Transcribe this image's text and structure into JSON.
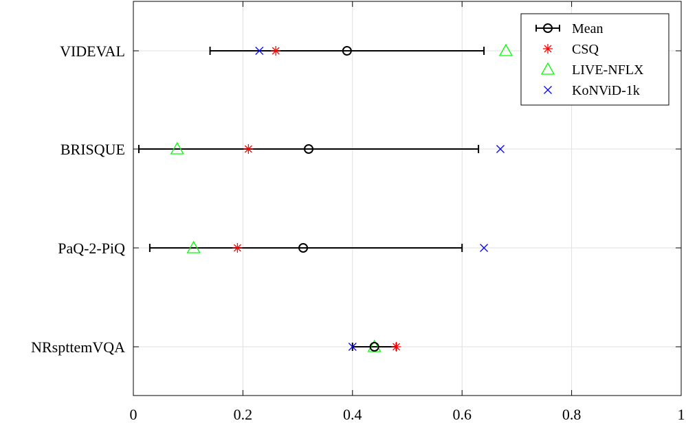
{
  "chart_data": {
    "type": "scatter",
    "orientation": "horizontal-errorbar",
    "categories": [
      "VIDEVAL",
      "BRISQUE",
      "PaQ-2-PiQ",
      "NRspttemVQA"
    ],
    "xlim": [
      0,
      1
    ],
    "xticks": [
      0,
      0.2,
      0.4,
      0.6,
      0.8,
      1
    ],
    "xtick_labels": [
      "0",
      "0.2",
      "0.4",
      "0.6",
      "0.8",
      "1"
    ],
    "grid": true,
    "legend_position": "top-right",
    "series": [
      {
        "name": "Mean",
        "marker": "circle",
        "color": "#000000",
        "values": [
          0.39,
          0.32,
          0.31,
          0.44
        ],
        "error_low": [
          0.14,
          0.01,
          0.03,
          0.4
        ],
        "error_high": [
          0.64,
          0.63,
          0.6,
          0.48
        ]
      },
      {
        "name": "CSQ",
        "marker": "asterisk",
        "color": "#ff0000",
        "values": [
          0.26,
          0.21,
          0.19,
          0.48
        ]
      },
      {
        "name": "LIVE-NFLX",
        "marker": "triangle",
        "color": "#00ff00",
        "values": [
          0.68,
          0.08,
          0.11,
          0.44
        ]
      },
      {
        "name": "KoNViD-1k",
        "marker": "cross",
        "color": "#0000ff",
        "values": [
          0.23,
          0.67,
          0.64,
          0.4
        ]
      }
    ]
  }
}
